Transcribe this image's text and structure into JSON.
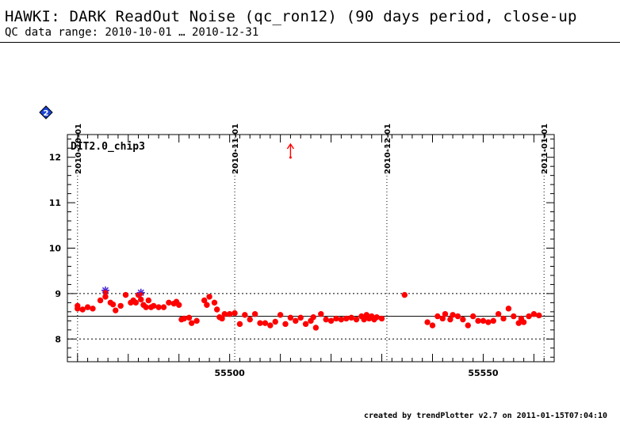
{
  "header": {
    "title": "HAWKI: DARK ReadOut Noise (qc_ron12) (90 days period, close-up",
    "subtitle": "QC data range: 2010-10-01 … 2010-12-31",
    "footer": "created by trendPlotter v2.7 on 2011-01-15T07:04:10"
  },
  "badge": {
    "label": "2",
    "icon": "diamond-badge-icon",
    "color": "#1a44d6"
  },
  "chart_data": {
    "type": "scatter",
    "panel_label": "DIT2.0_chip3",
    "xlim": [
      55468,
      55564
    ],
    "ylim": [
      7.5,
      12.5
    ],
    "x_ticks": [
      55500,
      55550
    ],
    "y_ticks": [
      8,
      9,
      10,
      11,
      12
    ],
    "date_markers": [
      {
        "label": "2010-10-01",
        "x": 55470
      },
      {
        "label": "2010-11-01",
        "x": 55501
      },
      {
        "label": "2010-12-01",
        "x": 55531
      },
      {
        "label": "2011-01-01",
        "x": 55562
      }
    ],
    "reference_line": 8.5,
    "threshold_lines": [
      8.0,
      9.0
    ],
    "grid": "dotted",
    "point_color": "#ff0000",
    "flag_color": "#4b2bd6",
    "series": [
      {
        "values": [
          [
            55470.0,
            8.73
          ],
          [
            55470.0,
            8.67
          ],
          [
            55471.0,
            8.65
          ],
          [
            55472.0,
            8.7
          ],
          [
            55473.0,
            8.67
          ],
          [
            55474.5,
            8.85
          ],
          [
            55475.5,
            9.03
          ],
          [
            55475.5,
            8.93
          ],
          [
            55476.5,
            8.8
          ],
          [
            55477.0,
            8.76
          ],
          [
            55477.5,
            8.63
          ],
          [
            55478.5,
            8.73
          ],
          [
            55479.5,
            8.97
          ],
          [
            55480.5,
            8.8
          ],
          [
            55481.0,
            8.85
          ],
          [
            55481.5,
            8.8
          ],
          [
            55482.0,
            8.97
          ],
          [
            55482.5,
            8.87
          ],
          [
            55483.0,
            8.75
          ],
          [
            55483.5,
            8.7
          ],
          [
            55484.0,
            8.85
          ],
          [
            55484.5,
            8.7
          ],
          [
            55485.0,
            8.73
          ],
          [
            55486.0,
            8.7
          ],
          [
            55487.0,
            8.7
          ],
          [
            55488.0,
            8.8
          ],
          [
            55489.0,
            8.78
          ],
          [
            55489.5,
            8.82
          ],
          [
            55490.0,
            8.75
          ],
          [
            55490.5,
            8.43
          ],
          [
            55491.0,
            8.45
          ],
          [
            55492.0,
            8.47
          ],
          [
            55492.5,
            8.35
          ],
          [
            55493.5,
            8.4
          ],
          [
            55495.0,
            8.85
          ],
          [
            55495.5,
            8.75
          ],
          [
            55496.0,
            8.93
          ],
          [
            55497.0,
            8.8
          ],
          [
            55497.5,
            8.65
          ],
          [
            55498.0,
            8.48
          ],
          [
            55498.5,
            8.45
          ],
          [
            55499.0,
            8.55
          ],
          [
            55500.0,
            8.55
          ],
          [
            55501.0,
            8.57
          ],
          [
            55502.0,
            8.33
          ],
          [
            55503.0,
            8.53
          ],
          [
            55504.0,
            8.43
          ],
          [
            55505.0,
            8.55
          ],
          [
            55506.0,
            8.35
          ],
          [
            55507.0,
            8.35
          ],
          [
            55508.0,
            8.3
          ],
          [
            55509.0,
            8.38
          ],
          [
            55510.0,
            8.53
          ],
          [
            55511.0,
            8.33
          ],
          [
            55512.0,
            8.47
          ],
          [
            55513.0,
            8.4
          ],
          [
            55514.0,
            8.47
          ],
          [
            55515.0,
            8.33
          ],
          [
            55516.0,
            8.4
          ],
          [
            55516.5,
            8.48
          ],
          [
            55517.0,
            8.25
          ],
          [
            55518.0,
            8.55
          ],
          [
            55519.0,
            8.43
          ],
          [
            55520.0,
            8.4
          ],
          [
            55521.0,
            8.45
          ],
          [
            55522.0,
            8.43
          ],
          [
            55523.0,
            8.45
          ],
          [
            55524.0,
            8.47
          ],
          [
            55525.0,
            8.43
          ],
          [
            55526.0,
            8.5
          ],
          [
            55526.5,
            8.43
          ],
          [
            55527.0,
            8.53
          ],
          [
            55527.5,
            8.45
          ],
          [
            55528.0,
            8.5
          ],
          [
            55528.5,
            8.43
          ],
          [
            55529.0,
            8.48
          ],
          [
            55530.0,
            8.45
          ],
          [
            55534.5,
            8.97
          ],
          [
            55539.0,
            8.37
          ],
          [
            55540.0,
            8.3
          ],
          [
            55541.0,
            8.5
          ],
          [
            55542.0,
            8.45
          ],
          [
            55542.5,
            8.55
          ],
          [
            55543.5,
            8.43
          ],
          [
            55544.0,
            8.53
          ],
          [
            55545.0,
            8.5
          ],
          [
            55546.0,
            8.43
          ],
          [
            55547.0,
            8.3
          ],
          [
            55548.0,
            8.5
          ],
          [
            55549.0,
            8.4
          ],
          [
            55550.0,
            8.4
          ],
          [
            55551.0,
            8.37
          ],
          [
            55552.0,
            8.4
          ],
          [
            55553.0,
            8.55
          ],
          [
            55554.0,
            8.45
          ],
          [
            55555.0,
            8.67
          ],
          [
            55556.0,
            8.5
          ],
          [
            55557.0,
            8.35
          ],
          [
            55557.5,
            8.45
          ],
          [
            55558.0,
            8.37
          ],
          [
            55559.0,
            8.5
          ],
          [
            55560.0,
            8.55
          ],
          [
            55561.0,
            8.52
          ]
        ]
      }
    ],
    "flagged_points": [
      [
        55475.5,
        9.07
      ],
      [
        55482.5,
        9.02
      ]
    ],
    "outlier_arrows": [
      {
        "x": 55512,
        "y": 12.1
      }
    ]
  }
}
